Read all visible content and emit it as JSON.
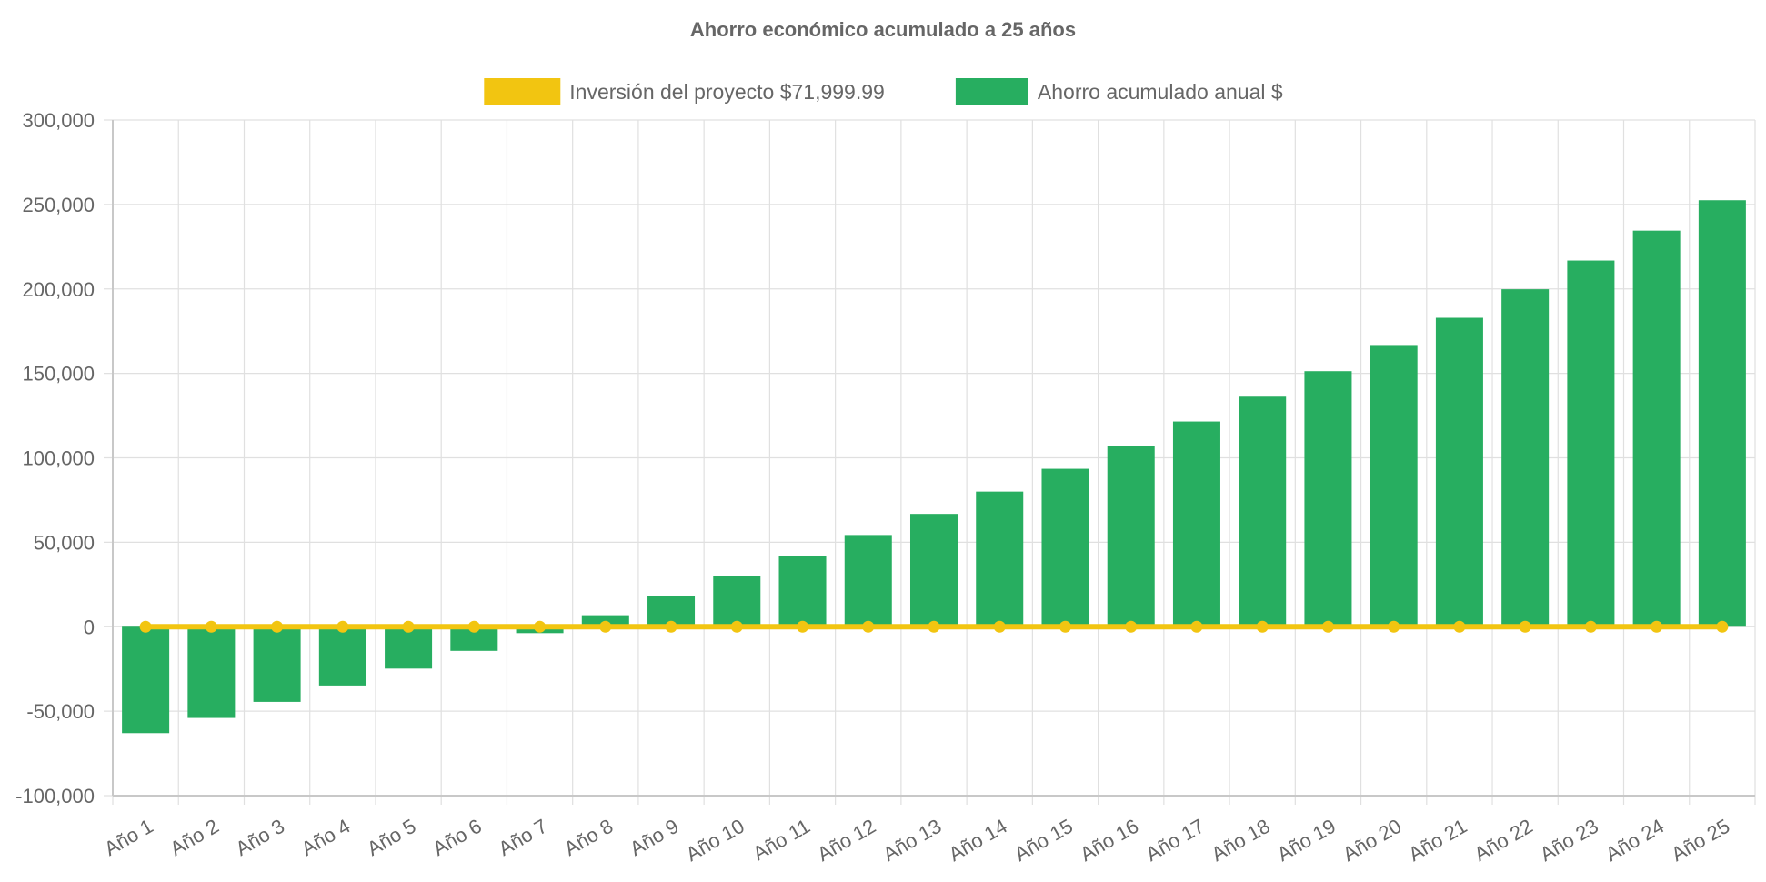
{
  "chart_data": {
    "type": "bar",
    "title": "Ahorro económico acumulado a 25 años",
    "xlabel": "",
    "ylabel": "",
    "categories": [
      "Año 1",
      "Año 2",
      "Año 3",
      "Año 4",
      "Año 5",
      "Año 6",
      "Año 7",
      "Año 8",
      "Año 9",
      "Año 10",
      "Año 11",
      "Año 12",
      "Año 13",
      "Año 14",
      "Año 15",
      "Año 16",
      "Año 17",
      "Año 18",
      "Año 19",
      "Año 20",
      "Año 21",
      "Año 22",
      "Año 23",
      "Año 24",
      "Año 25"
    ],
    "ylim": [
      -100000,
      300000
    ],
    "yticks": [
      300000,
      250000,
      200000,
      150000,
      100000,
      50000,
      0,
      -50000,
      -100000
    ],
    "ytick_labels": [
      "300,000",
      "250,000",
      "200,000",
      "150,000",
      "100,000",
      "50,000",
      "0",
      "-50,000",
      "-100,000"
    ],
    "grid": true,
    "legend_position": "top-center",
    "series": [
      {
        "name": "Inversión del proyecto $71,999.99",
        "kind": "line",
        "color": "#f2c511",
        "values": [
          0,
          0,
          0,
          0,
          0,
          0,
          0,
          0,
          0,
          0,
          0,
          0,
          0,
          0,
          0,
          0,
          0,
          0,
          0,
          0,
          0,
          0,
          0,
          0,
          0
        ]
      },
      {
        "name": "Ahorro acumulado anual $",
        "kind": "bar",
        "color": "#27ae60",
        "values": [
          -63000,
          -54000,
          -44500,
          -34800,
          -24800,
          -14300,
          -3800,
          6800,
          18300,
          29800,
          41800,
          54300,
          66800,
          80000,
          93500,
          107200,
          121500,
          136200,
          151300,
          166800,
          182900,
          199800,
          216800,
          234500,
          252500
        ]
      }
    ]
  }
}
